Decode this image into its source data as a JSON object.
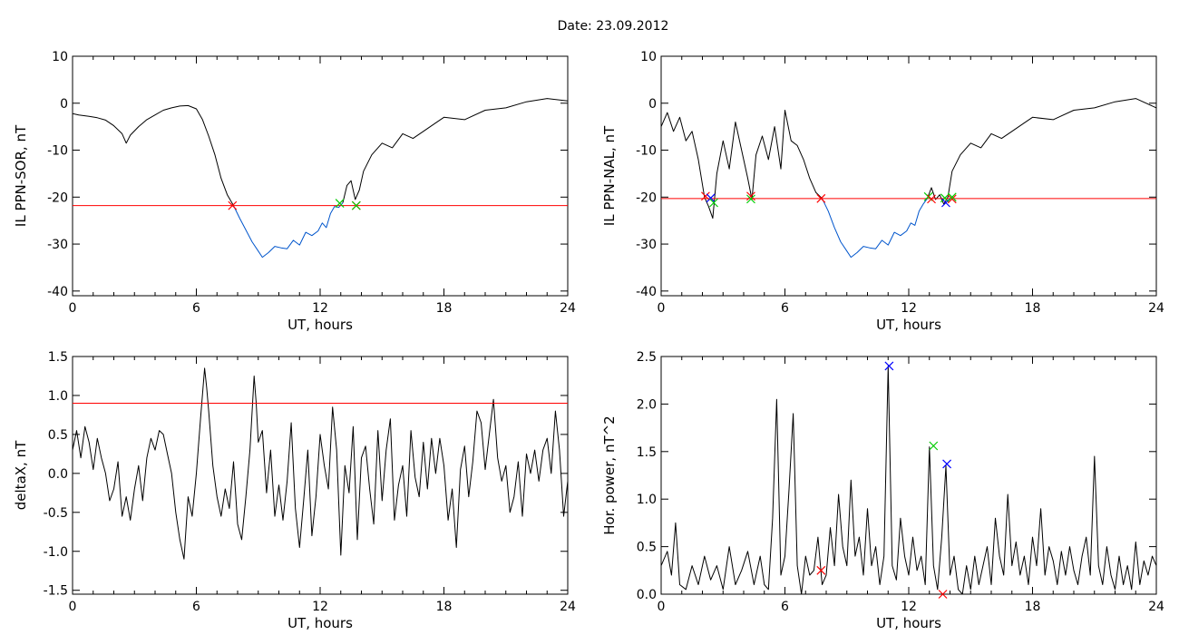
{
  "title": "Date:  23.09.2012",
  "chart_data": [
    {
      "type": "line",
      "ylabel": "IL PPN-SOR, nT",
      "xlabel": "UT, hours",
      "xlim": [
        0,
        24
      ],
      "ylim": [
        -41,
        10
      ],
      "xticks": [
        0,
        6,
        12,
        18,
        24
      ],
      "yticks": [
        10,
        0,
        -10,
        -20,
        -30,
        -40
      ],
      "threshold": -21.8,
      "threshold_color": "#ff0000",
      "series": [
        {
          "color": "#000000",
          "x": [
            0,
            0.3,
            0.8,
            1.2,
            1.6,
            2.0,
            2.4,
            2.6,
            2.8,
            3.2,
            3.6,
            4.0,
            4.4,
            4.8,
            5.2,
            5.6,
            6.0,
            6.3,
            6.6,
            6.9,
            7.2,
            7.5,
            7.8
          ],
          "y": [
            -2.2,
            -2.5,
            -2.8,
            -3.1,
            -3.6,
            -4.8,
            -6.5,
            -8.5,
            -6.8,
            -5.0,
            -3.5,
            -2.5,
            -1.5,
            -1.0,
            -0.6,
            -0.5,
            -1.2,
            -3.5,
            -7.0,
            -11.0,
            -16.0,
            -19.5,
            -21.8
          ]
        },
        {
          "color": "#0055cc",
          "x": [
            7.8,
            8.1,
            8.4,
            8.7,
            9.0,
            9.2,
            9.5,
            9.8,
            10.1,
            10.4,
            10.7,
            11.0,
            11.3,
            11.6,
            11.9,
            12.1,
            12.3,
            12.5,
            12.7,
            12.9,
            13.1
          ],
          "y": [
            -21.8,
            -24.5,
            -27.0,
            -29.5,
            -31.5,
            -32.8,
            -31.8,
            -30.5,
            -30.8,
            -31.0,
            -29.2,
            -30.2,
            -27.5,
            -28.2,
            -27.2,
            -25.5,
            -26.5,
            -23.5,
            -22.0,
            -22.2,
            -21.2
          ]
        },
        {
          "color": "#000000",
          "x": [
            13.1,
            13.3,
            13.5,
            13.7,
            13.9,
            14.1,
            14.5,
            15.0,
            15.5,
            16.0,
            16.5,
            17.0,
            17.5,
            18.0,
            19.0,
            20.0,
            21.0,
            22.0,
            23.0,
            24.0
          ],
          "y": [
            -21.2,
            -17.5,
            -16.5,
            -20.5,
            -18.5,
            -14.5,
            -11.0,
            -8.5,
            -9.5,
            -6.5,
            -7.5,
            -6.0,
            -4.5,
            -3.0,
            -3.5,
            -1.5,
            -1.0,
            0.3,
            1.0,
            0.5
          ]
        }
      ],
      "markers": [
        {
          "x": 7.75,
          "y": -21.8,
          "color": "#ff0000"
        },
        {
          "x": 12.95,
          "y": -21.3,
          "color": "#00cc00"
        },
        {
          "x": 13.75,
          "y": -21.8,
          "color": "#ff0000"
        },
        {
          "x": 13.75,
          "y": -21.8,
          "color": "#00cc00"
        }
      ]
    },
    {
      "type": "line",
      "ylabel": "IL PPN-NAL, nT",
      "xlabel": "UT, hours",
      "xlim": [
        0,
        24
      ],
      "ylim": [
        -41,
        10
      ],
      "xticks": [
        0,
        6,
        12,
        18,
        24
      ],
      "yticks": [
        10,
        0,
        -10,
        -20,
        -30,
        -40
      ],
      "threshold": -20.3,
      "threshold_color": "#ff0000",
      "series": [
        {
          "color": "#000000",
          "x": [
            0,
            0.3,
            0.6,
            0.9,
            1.2,
            1.5,
            1.8,
            2.1,
            2.3,
            2.5,
            2.7,
            3.0,
            3.3,
            3.6,
            3.9,
            4.2,
            4.4,
            4.6,
            4.9,
            5.2,
            5.5,
            5.8,
            6.0,
            6.3,
            6.6,
            6.9,
            7.2,
            7.5,
            7.8
          ],
          "y": [
            -5.0,
            -2.0,
            -6.0,
            -3.0,
            -8.0,
            -6.0,
            -12.0,
            -20.0,
            -22.0,
            -24.5,
            -15.0,
            -8.0,
            -14.0,
            -4.0,
            -10.0,
            -16.0,
            -20.5,
            -11.0,
            -7.0,
            -12.0,
            -5.0,
            -14.0,
            -1.5,
            -8.0,
            -9.0,
            -12.0,
            -16.0,
            -19.0,
            -20.3
          ]
        },
        {
          "color": "#0055cc",
          "x": [
            7.8,
            8.1,
            8.4,
            8.7,
            9.0,
            9.2,
            9.5,
            9.8,
            10.1,
            10.4,
            10.7,
            11.0,
            11.3,
            11.6,
            11.9,
            12.1,
            12.3,
            12.5,
            12.7,
            12.9
          ],
          "y": [
            -20.3,
            -23.0,
            -26.5,
            -29.5,
            -31.5,
            -32.8,
            -31.8,
            -30.5,
            -30.8,
            -31.0,
            -29.2,
            -30.2,
            -27.5,
            -28.2,
            -27.2,
            -25.5,
            -26.0,
            -23.0,
            -21.5,
            -20.3
          ]
        },
        {
          "color": "#000000",
          "x": [
            12.9,
            13.1,
            13.3,
            13.5,
            13.7,
            13.9,
            14.1,
            14.5,
            15.0,
            15.5,
            16.0,
            16.5,
            17.0,
            17.5,
            18.0,
            19.0,
            20.0,
            21.0,
            22.0,
            23.0,
            24.0
          ],
          "y": [
            -20.3,
            -18.0,
            -20.5,
            -19.5,
            -21.5,
            -20.0,
            -14.5,
            -11.0,
            -8.5,
            -9.5,
            -6.5,
            -7.5,
            -6.0,
            -4.5,
            -3.0,
            -3.5,
            -1.5,
            -1.0,
            0.3,
            1.0,
            -1.0
          ]
        }
      ],
      "markers": [
        {
          "x": 2.15,
          "y": -19.8,
          "color": "#ff0000"
        },
        {
          "x": 2.4,
          "y": -20.2,
          "color": "#0000ff"
        },
        {
          "x": 2.55,
          "y": -21.2,
          "color": "#00cc00"
        },
        {
          "x": 4.35,
          "y": -19.8,
          "color": "#ff0000"
        },
        {
          "x": 4.35,
          "y": -20.4,
          "color": "#00cc00"
        },
        {
          "x": 7.75,
          "y": -20.3,
          "color": "#ff0000"
        },
        {
          "x": 12.95,
          "y": -19.9,
          "color": "#00cc00"
        },
        {
          "x": 13.1,
          "y": -20.4,
          "color": "#ff0000"
        },
        {
          "x": 13.75,
          "y": -20.2,
          "color": "#00cc00"
        },
        {
          "x": 13.8,
          "y": -21.2,
          "color": "#0000ff"
        },
        {
          "x": 14.1,
          "y": -20.4,
          "color": "#ff0000"
        },
        {
          "x": 14.1,
          "y": -20.0,
          "color": "#00cc00"
        }
      ]
    },
    {
      "type": "line",
      "ylabel": "deltaX, nT",
      "xlabel": "UT, hours",
      "xlim": [
        0,
        24
      ],
      "ylim": [
        -1.55,
        1.5
      ],
      "xticks": [
        0,
        6,
        12,
        18,
        24
      ],
      "yticks": [
        1.5,
        1.0,
        0.5,
        0.0,
        -0.5,
        -1.0,
        -1.5
      ],
      "threshold": 0.9,
      "threshold_color": "#ff0000",
      "series": [
        {
          "color": "#000000",
          "x": [
            0,
            0.2,
            0.4,
            0.6,
            0.8,
            1.0,
            1.2,
            1.4,
            1.6,
            1.8,
            2.0,
            2.2,
            2.4,
            2.6,
            2.8,
            3.0,
            3.2,
            3.4,
            3.6,
            3.8,
            4.0,
            4.2,
            4.4,
            4.6,
            4.8,
            5.0,
            5.2,
            5.4,
            5.6,
            5.8,
            6.0,
            6.2,
            6.4,
            6.5,
            6.6,
            6.8,
            7.0,
            7.2,
            7.4,
            7.6,
            7.8,
            8.0,
            8.2,
            8.4,
            8.6,
            8.8,
            8.9,
            9.0,
            9.2,
            9.4,
            9.6,
            9.8,
            10.0,
            10.2,
            10.4,
            10.6,
            10.8,
            11.0,
            11.2,
            11.4,
            11.6,
            11.8,
            12.0,
            12.2,
            12.4,
            12.6,
            12.8,
            13.0,
            13.2,
            13.4,
            13.6,
            13.8,
            14.0,
            14.2,
            14.4,
            14.6,
            14.8,
            15.0,
            15.2,
            15.4,
            15.6,
            15.8,
            16.0,
            16.2,
            16.4,
            16.6,
            16.8,
            17.0,
            17.2,
            17.4,
            17.6,
            17.8,
            18.0,
            18.2,
            18.4,
            18.6,
            18.8,
            19.0,
            19.2,
            19.4,
            19.6,
            19.8,
            20.0,
            20.2,
            20.4,
            20.6,
            20.8,
            21.0,
            21.2,
            21.4,
            21.6,
            21.8,
            22.0,
            22.2,
            22.4,
            22.6,
            22.8,
            23.0,
            23.2,
            23.4,
            23.6,
            23.8,
            24.0
          ],
          "y": [
            0.3,
            0.55,
            0.2,
            0.6,
            0.4,
            0.05,
            0.45,
            0.2,
            0.0,
            -0.35,
            -0.2,
            0.15,
            -0.55,
            -0.3,
            -0.6,
            -0.2,
            0.1,
            -0.35,
            0.2,
            0.45,
            0.3,
            0.55,
            0.5,
            0.25,
            0.0,
            -0.5,
            -0.85,
            -1.1,
            -0.3,
            -0.55,
            0.0,
            0.7,
            1.35,
            1.1,
            0.8,
            0.1,
            -0.3,
            -0.55,
            -0.2,
            -0.45,
            0.15,
            -0.65,
            -0.85,
            -0.3,
            0.3,
            1.25,
            0.9,
            0.4,
            0.55,
            -0.25,
            0.3,
            -0.55,
            -0.15,
            -0.6,
            -0.1,
            0.65,
            -0.45,
            -0.95,
            -0.35,
            0.3,
            -0.8,
            -0.3,
            0.5,
            0.1,
            -0.2,
            0.85,
            0.3,
            -1.05,
            0.1,
            -0.25,
            0.6,
            -0.85,
            0.2,
            0.35,
            -0.2,
            -0.65,
            0.55,
            -0.35,
            0.3,
            0.7,
            -0.6,
            -0.15,
            0.1,
            -0.55,
            0.55,
            -0.05,
            -0.3,
            0.4,
            -0.2,
            0.45,
            0.0,
            0.45,
            0.1,
            -0.6,
            -0.2,
            -0.95,
            0.05,
            0.35,
            -0.3,
            0.15,
            0.8,
            0.65,
            0.05,
            0.5,
            0.95,
            0.2,
            -0.1,
            0.1,
            -0.5,
            -0.3,
            0.15,
            -0.55,
            0.25,
            0.0,
            0.3,
            -0.1,
            0.3,
            0.45,
            0.0,
            0.8,
            0.3,
            -0.55,
            -0.1
          ]
        }
      ],
      "markers": []
    },
    {
      "type": "line",
      "ylabel": "Hor. power, nT^2",
      "xlabel": "UT, hours",
      "xlim": [
        0,
        24
      ],
      "ylim": [
        0,
        2.5
      ],
      "xticks": [
        0,
        6,
        12,
        18,
        24
      ],
      "yticks": [
        2.5,
        2.0,
        1.5,
        1.0,
        0.5,
        0.0
      ],
      "series": [
        {
          "color": "#000000",
          "x": [
            0,
            0.3,
            0.5,
            0.7,
            0.9,
            1.2,
            1.5,
            1.8,
            2.1,
            2.4,
            2.7,
            3.0,
            3.3,
            3.6,
            3.9,
            4.2,
            4.5,
            4.8,
            5.0,
            5.2,
            5.4,
            5.6,
            5.8,
            6.0,
            6.2,
            6.4,
            6.6,
            6.8,
            7.0,
            7.2,
            7.4,
            7.6,
            7.8,
            8.0,
            8.2,
            8.4,
            8.6,
            8.8,
            9.0,
            9.2,
            9.4,
            9.6,
            9.8,
            10.0,
            10.2,
            10.4,
            10.6,
            10.8,
            11.0,
            11.2,
            11.4,
            11.6,
            11.8,
            12.0,
            12.2,
            12.4,
            12.6,
            12.8,
            13.0,
            13.2,
            13.4,
            13.6,
            13.8,
            14.0,
            14.2,
            14.4,
            14.6,
            14.8,
            15.0,
            15.2,
            15.4,
            15.6,
            15.8,
            16.0,
            16.2,
            16.4,
            16.6,
            16.8,
            17.0,
            17.2,
            17.4,
            17.6,
            17.8,
            18.0,
            18.2,
            18.4,
            18.6,
            18.8,
            19.0,
            19.2,
            19.4,
            19.6,
            19.8,
            20.0,
            20.2,
            20.4,
            20.6,
            20.8,
            21.0,
            21.2,
            21.4,
            21.6,
            21.8,
            22.0,
            22.2,
            22.4,
            22.6,
            22.8,
            23.0,
            23.2,
            23.4,
            23.6,
            23.8,
            24.0
          ],
          "y": [
            0.3,
            0.45,
            0.2,
            0.75,
            0.1,
            0.05,
            0.3,
            0.1,
            0.4,
            0.15,
            0.3,
            0.05,
            0.5,
            0.1,
            0.25,
            0.45,
            0.1,
            0.4,
            0.1,
            0.05,
            0.8,
            2.05,
            0.2,
            0.4,
            1.1,
            1.9,
            0.3,
            0.0,
            0.4,
            0.2,
            0.25,
            0.6,
            0.1,
            0.2,
            0.7,
            0.3,
            1.05,
            0.5,
            0.3,
            1.2,
            0.4,
            0.6,
            0.2,
            0.9,
            0.3,
            0.5,
            0.1,
            0.4,
            2.4,
            0.3,
            0.15,
            0.8,
            0.4,
            0.2,
            0.6,
            0.25,
            0.4,
            0.1,
            1.55,
            0.3,
            0.05,
            0.6,
            1.35,
            0.2,
            0.4,
            0.05,
            0.0,
            0.3,
            0.05,
            0.4,
            0.1,
            0.3,
            0.5,
            0.1,
            0.8,
            0.4,
            0.2,
            1.05,
            0.3,
            0.55,
            0.2,
            0.4,
            0.1,
            0.6,
            0.3,
            0.9,
            0.2,
            0.5,
            0.35,
            0.1,
            0.45,
            0.2,
            0.5,
            0.25,
            0.1,
            0.4,
            0.6,
            0.2,
            1.45,
            0.3,
            0.1,
            0.5,
            0.2,
            0.05,
            0.4,
            0.1,
            0.3,
            0.05,
            0.55,
            0.1,
            0.35,
            0.2,
            0.4,
            0.3
          ]
        }
      ],
      "markers": [
        {
          "x": 11.05,
          "y": 2.4,
          "color": "#0000ff"
        },
        {
          "x": 13.2,
          "y": 1.56,
          "color": "#00cc00"
        },
        {
          "x": 13.85,
          "y": 1.37,
          "color": "#0000ff"
        },
        {
          "x": 7.75,
          "y": 0.25,
          "color": "#ff0000"
        },
        {
          "x": 13.65,
          "y": 0.0,
          "color": "#ff0000"
        }
      ]
    }
  ]
}
